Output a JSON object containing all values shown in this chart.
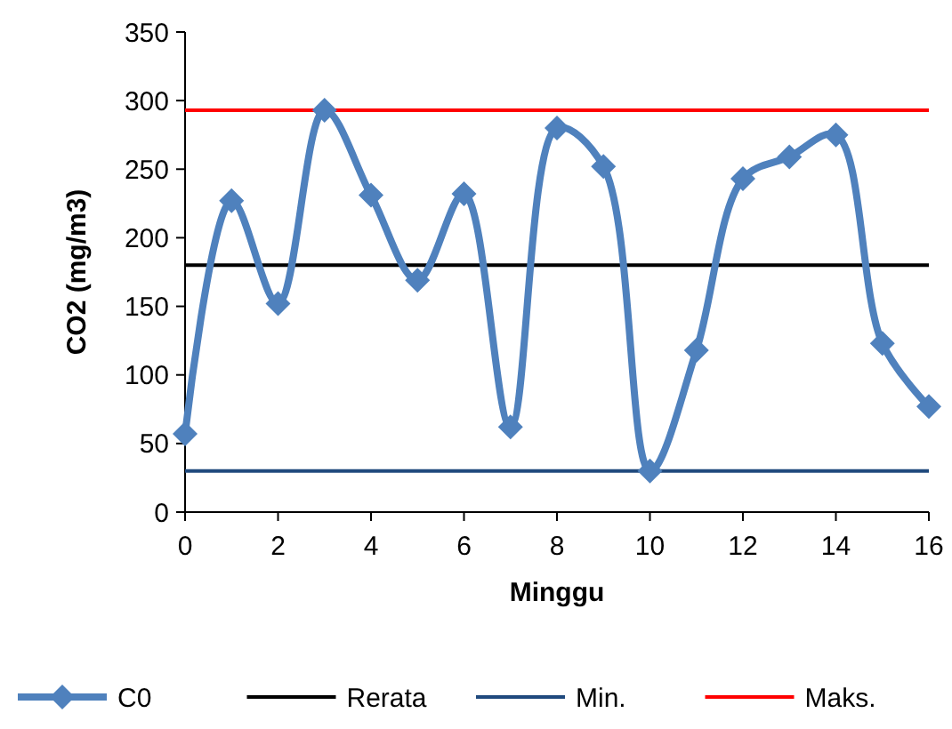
{
  "chart_data": {
    "type": "line",
    "xlabel": "Minggu",
    "ylabel": "CO2 (mg/m3)",
    "x": [
      0,
      1,
      2,
      3,
      4,
      5,
      6,
      7,
      8,
      9,
      10,
      11,
      12,
      13,
      14,
      15,
      16
    ],
    "series": [
      {
        "name": "C0",
        "color": "#4f81bd",
        "values": [
          57,
          227,
          152,
          293,
          231,
          169,
          232,
          62,
          280,
          252,
          30,
          118,
          243,
          259,
          275,
          123,
          77
        ]
      }
    ],
    "xlim": [
      0,
      16
    ],
    "xticks": [
      0,
      2,
      4,
      6,
      8,
      10,
      12,
      14,
      16
    ],
    "ylim": [
      0,
      350
    ],
    "yticks": [
      0,
      50,
      100,
      150,
      200,
      250,
      300,
      350
    ],
    "ref_lines": [
      {
        "axis": "y",
        "value": 180,
        "label": "Rerata",
        "color": "#000000"
      },
      {
        "axis": "y",
        "value": 30,
        "label": "Min.",
        "color": "#1f497d"
      },
      {
        "axis": "y",
        "value": 293,
        "label": "Maks.",
        "color": "#ff0000"
      }
    ],
    "marker": "diamond",
    "legend": "bottom",
    "grid": false
  }
}
